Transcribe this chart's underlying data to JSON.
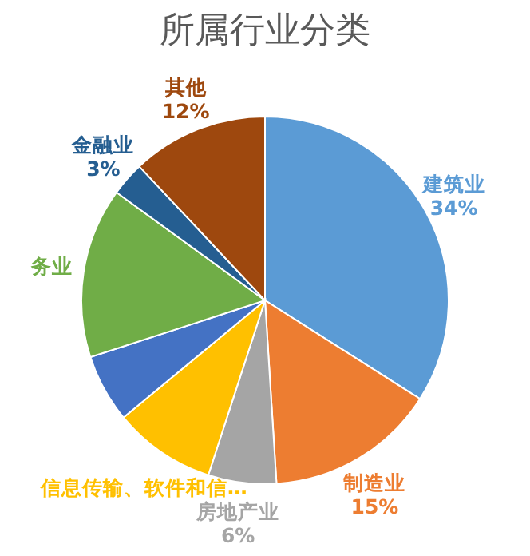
{
  "chart_data": {
    "type": "pie",
    "title": "所属行业分类",
    "categories": [
      "建筑业",
      "制造业",
      "房地产业",
      "信息传输、软件和信…",
      null,
      "务业",
      "金融业",
      "其他"
    ],
    "values": [
      34,
      15,
      6,
      9,
      6,
      15,
      3,
      12
    ],
    "value_labels": [
      "34%",
      "15%",
      "6%",
      null,
      null,
      null,
      "3%",
      "12%"
    ],
    "colors": [
      "#5b9bd5",
      "#ed7d31",
      "#a5a5a5",
      "#ffc000",
      "#4472c4",
      "#70ad47",
      "#255e91",
      "#9e480e"
    ]
  }
}
